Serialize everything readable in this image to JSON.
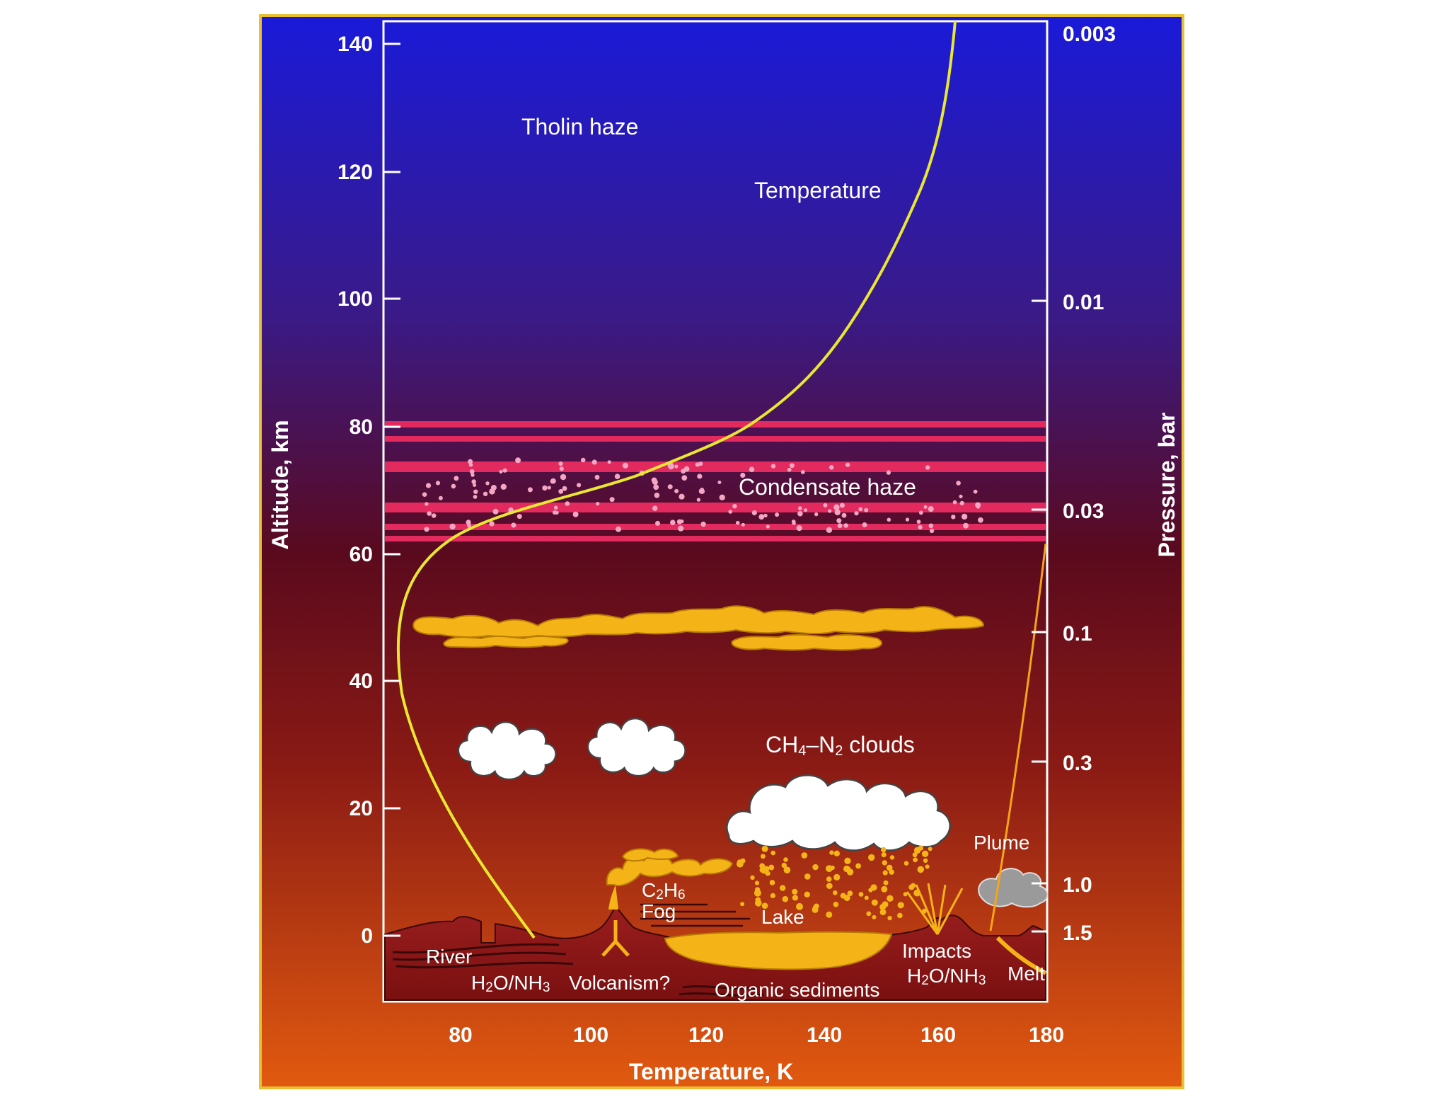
{
  "axes": {
    "altitude_label": "Altitude, km",
    "pressure_label": "Pressure, bar",
    "temperature_label": "Temperature, K",
    "altitude_ticks": [
      "140",
      "120",
      "100",
      "80",
      "60",
      "40",
      "20",
      "0"
    ],
    "temperature_ticks": [
      "80",
      "100",
      "120",
      "140",
      "160",
      "180"
    ],
    "pressure_ticks": [
      "0.003",
      "0.01",
      "0.03",
      "0.1",
      "0.3",
      "1.0",
      "1.5"
    ]
  },
  "labels": {
    "tholin_haze": "Tholin haze",
    "temperature": "Temperature",
    "condensate_haze": "Condensate haze",
    "clouds_a": "CH",
    "clouds_a_sub": "4",
    "clouds_b": "–N",
    "clouds_b_sub": "2",
    "clouds_c": " clouds",
    "plume": "Plume",
    "ethane_a": "C",
    "ethane_a_sub": "2",
    "ethane_b": "H",
    "ethane_b_sub": "6",
    "fog": "Fog",
    "lake": "Lake",
    "river": "River",
    "h2o_left_a": "H",
    "h2o_left_a_sub": "2",
    "h2o_left_b": "O/NH",
    "h2o_left_b_sub": "3",
    "volcanism": "Volcanism?",
    "organic_sediments": "Organic sediments",
    "impacts": "Impacts",
    "h2o_right_a": "H",
    "h2o_right_a_sub": "2",
    "h2o_right_b": "O/NH",
    "h2o_right_b_sub": "3",
    "melt": "Melt"
  },
  "colors": {
    "sky_top": "#1a1ad8",
    "sky_mid": "#5a0a1e",
    "sky_bottom": "#e25a10",
    "frame": "#e9c033",
    "haze_band": "#e22a5e",
    "temperature_curve": "#e8e832",
    "organic_cloud": "#f4b418",
    "methane_cloud": "#ffffff",
    "ground": "#8e1a1a"
  }
}
